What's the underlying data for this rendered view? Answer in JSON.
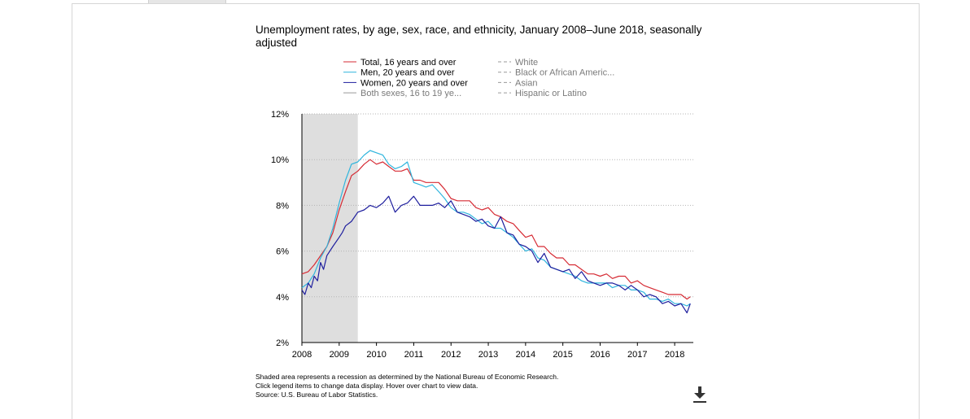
{
  "chart_data": {
    "type": "line",
    "title": "Unemployment rates, by age, sex, race, and ethnicity, January 2008–June 2018, seasonally adjusted",
    "ylabel": "",
    "xlabel": "",
    "ylim": [
      2,
      12
    ],
    "xlim": [
      2008.0,
      2018.5
    ],
    "y_ticks": [
      2,
      4,
      6,
      8,
      10,
      12
    ],
    "y_tick_labels": [
      "2%",
      "4%",
      "6%",
      "8%",
      "10%",
      "12%"
    ],
    "x_ticks": [
      2008,
      2009,
      2010,
      2011,
      2012,
      2013,
      2014,
      2015,
      2016,
      2017,
      2018
    ],
    "x_tick_labels": [
      "2008",
      "2009",
      "2010",
      "2011",
      "2012",
      "2013",
      "2014",
      "2015",
      "2016",
      "2017",
      "2018"
    ],
    "grid": "horizontal dotted",
    "legend_position": "top",
    "recession": {
      "start": 2008.0,
      "end": 2009.5,
      "color": "#dedede"
    },
    "series": [
      {
        "name": "Total, 16 years and over",
        "color": "#d62b34",
        "dashed": false,
        "active": true,
        "points": [
          [
            2008.0,
            5.0
          ],
          [
            2008.17,
            5.1
          ],
          [
            2008.33,
            5.4
          ],
          [
            2008.5,
            5.8
          ],
          [
            2008.67,
            6.2
          ],
          [
            2008.83,
            6.8
          ],
          [
            2009.0,
            7.8
          ],
          [
            2009.17,
            8.6
          ],
          [
            2009.33,
            9.3
          ],
          [
            2009.5,
            9.5
          ],
          [
            2009.67,
            9.8
          ],
          [
            2009.83,
            10.0
          ],
          [
            2010.0,
            9.8
          ],
          [
            2010.17,
            9.9
          ],
          [
            2010.33,
            9.7
          ],
          [
            2010.5,
            9.5
          ],
          [
            2010.67,
            9.5
          ],
          [
            2010.83,
            9.6
          ],
          [
            2011.0,
            9.1
          ],
          [
            2011.17,
            9.1
          ],
          [
            2011.33,
            9.0
          ],
          [
            2011.5,
            9.0
          ],
          [
            2011.67,
            9.0
          ],
          [
            2011.83,
            8.7
          ],
          [
            2012.0,
            8.3
          ],
          [
            2012.17,
            8.2
          ],
          [
            2012.33,
            8.2
          ],
          [
            2012.5,
            8.2
          ],
          [
            2012.67,
            7.9
          ],
          [
            2012.83,
            7.8
          ],
          [
            2013.0,
            7.9
          ],
          [
            2013.17,
            7.6
          ],
          [
            2013.33,
            7.5
          ],
          [
            2013.5,
            7.3
          ],
          [
            2013.67,
            7.2
          ],
          [
            2013.83,
            6.9
          ],
          [
            2014.0,
            6.6
          ],
          [
            2014.17,
            6.7
          ],
          [
            2014.33,
            6.2
          ],
          [
            2014.5,
            6.2
          ],
          [
            2014.67,
            5.9
          ],
          [
            2014.83,
            5.7
          ],
          [
            2015.0,
            5.7
          ],
          [
            2015.17,
            5.4
          ],
          [
            2015.33,
            5.4
          ],
          [
            2015.5,
            5.2
          ],
          [
            2015.67,
            5.0
          ],
          [
            2015.83,
            5.0
          ],
          [
            2016.0,
            4.9
          ],
          [
            2016.17,
            5.0
          ],
          [
            2016.33,
            4.8
          ],
          [
            2016.5,
            4.9
          ],
          [
            2016.67,
            4.9
          ],
          [
            2016.83,
            4.6
          ],
          [
            2017.0,
            4.7
          ],
          [
            2017.17,
            4.5
          ],
          [
            2017.33,
            4.4
          ],
          [
            2017.5,
            4.3
          ],
          [
            2017.67,
            4.2
          ],
          [
            2017.83,
            4.1
          ],
          [
            2018.0,
            4.1
          ],
          [
            2018.17,
            4.1
          ],
          [
            2018.33,
            3.9
          ],
          [
            2018.42,
            4.0
          ]
        ]
      },
      {
        "name": "Men, 20 years and over",
        "color": "#2fb5dd",
        "dashed": false,
        "active": true,
        "points": [
          [
            2008.0,
            4.4
          ],
          [
            2008.17,
            4.6
          ],
          [
            2008.33,
            5.0
          ],
          [
            2008.5,
            5.7
          ],
          [
            2008.67,
            6.2
          ],
          [
            2008.83,
            7.0
          ],
          [
            2009.0,
            8.1
          ],
          [
            2009.17,
            9.1
          ],
          [
            2009.33,
            9.8
          ],
          [
            2009.5,
            9.9
          ],
          [
            2009.67,
            10.2
          ],
          [
            2009.83,
            10.4
          ],
          [
            2010.0,
            10.3
          ],
          [
            2010.17,
            10.2
          ],
          [
            2010.33,
            9.8
          ],
          [
            2010.5,
            9.6
          ],
          [
            2010.67,
            9.7
          ],
          [
            2010.83,
            9.9
          ],
          [
            2011.0,
            9.0
          ],
          [
            2011.17,
            8.9
          ],
          [
            2011.33,
            8.8
          ],
          [
            2011.5,
            8.9
          ],
          [
            2011.67,
            8.6
          ],
          [
            2011.83,
            8.3
          ],
          [
            2012.0,
            7.9
          ],
          [
            2012.17,
            7.7
          ],
          [
            2012.33,
            7.7
          ],
          [
            2012.5,
            7.6
          ],
          [
            2012.67,
            7.4
          ],
          [
            2012.83,
            7.2
          ],
          [
            2013.0,
            7.3
          ],
          [
            2013.17,
            7.0
          ],
          [
            2013.33,
            7.0
          ],
          [
            2013.5,
            6.8
          ],
          [
            2013.67,
            6.6
          ],
          [
            2013.83,
            6.3
          ],
          [
            2014.0,
            6.0
          ],
          [
            2014.17,
            6.1
          ],
          [
            2014.33,
            5.7
          ],
          [
            2014.5,
            5.6
          ],
          [
            2014.67,
            5.3
          ],
          [
            2014.83,
            5.2
          ],
          [
            2015.0,
            5.1
          ],
          [
            2015.17,
            5.0
          ],
          [
            2015.33,
            4.9
          ],
          [
            2015.5,
            4.7
          ],
          [
            2015.67,
            4.6
          ],
          [
            2015.83,
            4.6
          ],
          [
            2016.0,
            4.6
          ],
          [
            2016.17,
            4.6
          ],
          [
            2016.33,
            4.4
          ],
          [
            2016.5,
            4.5
          ],
          [
            2016.67,
            4.5
          ],
          [
            2016.83,
            4.3
          ],
          [
            2017.0,
            4.3
          ],
          [
            2017.17,
            4.2
          ],
          [
            2017.33,
            3.9
          ],
          [
            2017.5,
            3.9
          ],
          [
            2017.67,
            3.8
          ],
          [
            2017.83,
            3.9
          ],
          [
            2018.0,
            3.7
          ],
          [
            2018.17,
            3.7
          ],
          [
            2018.33,
            3.6
          ],
          [
            2018.42,
            3.7
          ]
        ]
      },
      {
        "name": "Women, 20 years and over",
        "color": "#1f1f9e",
        "dashed": false,
        "active": true,
        "points": [
          [
            2008.0,
            4.3
          ],
          [
            2008.08,
            4.1
          ],
          [
            2008.17,
            4.6
          ],
          [
            2008.25,
            4.4
          ],
          [
            2008.33,
            4.9
          ],
          [
            2008.42,
            4.7
          ],
          [
            2008.5,
            5.5
          ],
          [
            2008.58,
            5.2
          ],
          [
            2008.67,
            5.8
          ],
          [
            2008.83,
            6.2
          ],
          [
            2009.0,
            6.6
          ],
          [
            2009.08,
            6.8
          ],
          [
            2009.17,
            7.1
          ],
          [
            2009.33,
            7.3
          ],
          [
            2009.5,
            7.7
          ],
          [
            2009.67,
            7.8
          ],
          [
            2009.83,
            8.0
          ],
          [
            2010.0,
            7.9
          ],
          [
            2010.17,
            8.1
          ],
          [
            2010.33,
            8.4
          ],
          [
            2010.5,
            7.7
          ],
          [
            2010.67,
            8.0
          ],
          [
            2010.83,
            8.1
          ],
          [
            2011.0,
            8.4
          ],
          [
            2011.17,
            8.0
          ],
          [
            2011.33,
            8.0
          ],
          [
            2011.5,
            8.0
          ],
          [
            2011.67,
            8.1
          ],
          [
            2011.83,
            7.9
          ],
          [
            2012.0,
            8.2
          ],
          [
            2012.17,
            7.7
          ],
          [
            2012.33,
            7.6
          ],
          [
            2012.5,
            7.5
          ],
          [
            2012.67,
            7.3
          ],
          [
            2012.83,
            7.4
          ],
          [
            2013.0,
            7.1
          ],
          [
            2013.17,
            7.0
          ],
          [
            2013.33,
            7.5
          ],
          [
            2013.5,
            6.8
          ],
          [
            2013.67,
            6.7
          ],
          [
            2013.83,
            6.3
          ],
          [
            2014.0,
            6.2
          ],
          [
            2014.17,
            6.0
          ],
          [
            2014.33,
            5.5
          ],
          [
            2014.5,
            5.9
          ],
          [
            2014.67,
            5.3
          ],
          [
            2014.83,
            5.2
          ],
          [
            2015.0,
            5.1
          ],
          [
            2015.17,
            5.2
          ],
          [
            2015.33,
            4.8
          ],
          [
            2015.5,
            5.1
          ],
          [
            2015.67,
            4.7
          ],
          [
            2015.83,
            4.6
          ],
          [
            2016.0,
            4.5
          ],
          [
            2016.17,
            4.6
          ],
          [
            2016.33,
            4.6
          ],
          [
            2016.5,
            4.5
          ],
          [
            2016.67,
            4.3
          ],
          [
            2016.83,
            4.5
          ],
          [
            2017.0,
            4.3
          ],
          [
            2017.17,
            4.0
          ],
          [
            2017.33,
            4.1
          ],
          [
            2017.5,
            4.0
          ],
          [
            2017.67,
            3.7
          ],
          [
            2017.83,
            3.8
          ],
          [
            2018.0,
            3.6
          ],
          [
            2018.17,
            3.7
          ],
          [
            2018.33,
            3.3
          ],
          [
            2018.42,
            3.7
          ]
        ]
      },
      {
        "name": "Both sexes, 16 to 19 ye...",
        "color": "#9a9a9a",
        "dashed": false,
        "active": false,
        "points": []
      },
      {
        "name": "White",
        "color": "#9a9a9a",
        "dashed": true,
        "active": false,
        "points": []
      },
      {
        "name": "Black or African Americ...",
        "color": "#9a9a9a",
        "dashed": true,
        "active": false,
        "points": []
      },
      {
        "name": "Asian",
        "color": "#9a9a9a",
        "dashed": true,
        "active": false,
        "points": []
      },
      {
        "name": "Hispanic or Latino",
        "color": "#9a9a9a",
        "dashed": true,
        "active": false,
        "points": []
      }
    ]
  },
  "notes": {
    "line1": "Shaded area represents a recession as determined by the National Bureau of Economic Research.",
    "line2": "Click legend items to change data display. Hover over chart to view data.",
    "line3": "Source: U.S. Bureau of Labor Statistics."
  },
  "download": {
    "icon": "download-icon"
  }
}
